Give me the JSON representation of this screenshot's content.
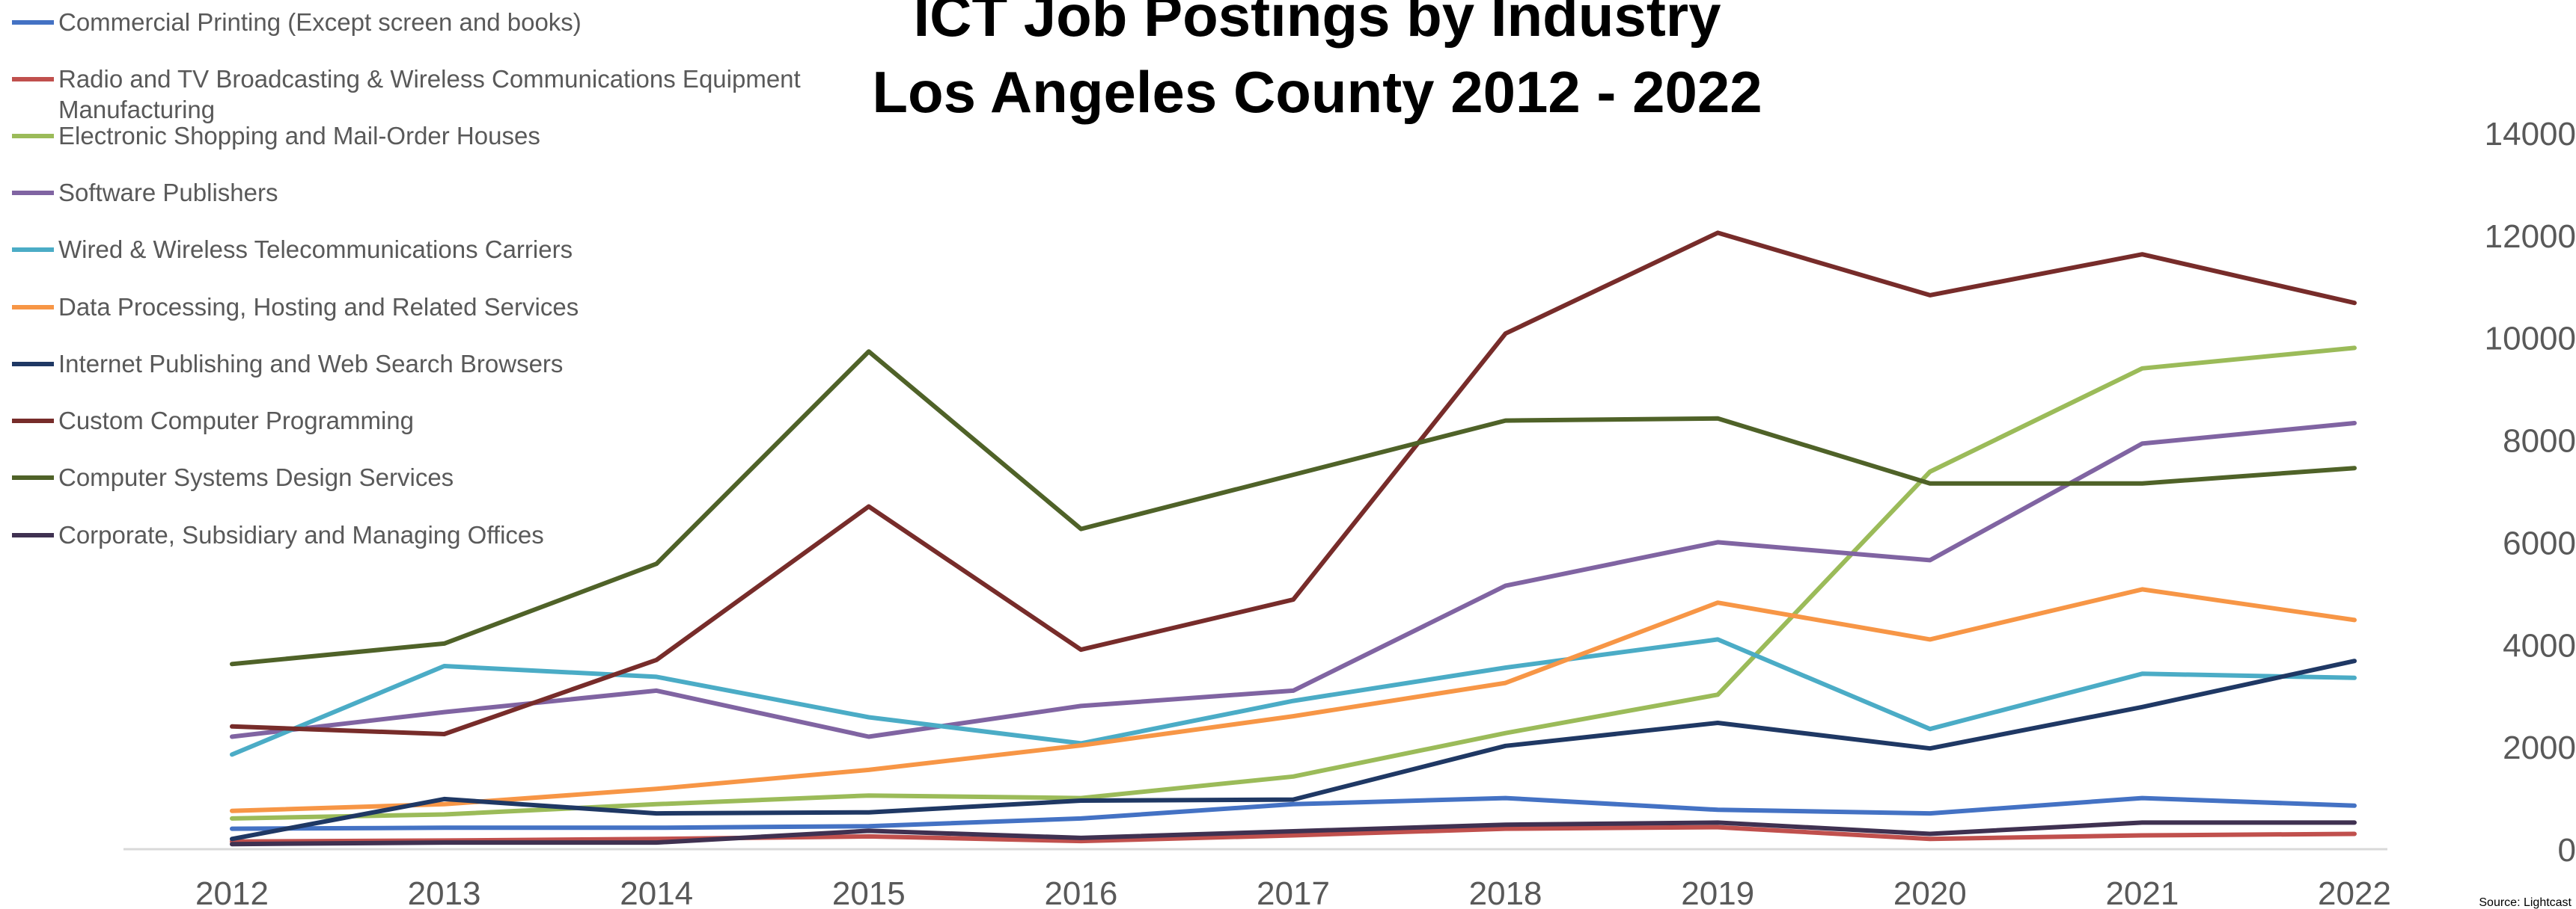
{
  "chart_data": {
    "type": "line",
    "title": [
      "ICT Job Postings by Industry",
      "Los Angeles County 2012 - 2022"
    ],
    "categories": [
      "2012",
      "2013",
      "2014",
      "2015",
      "2016",
      "2017",
      "2018",
      "2019",
      "2020",
      "2021",
      "2022"
    ],
    "ylim": [
      0,
      14000
    ],
    "yticks": [
      "0",
      "2000",
      "4000",
      "6000",
      "8000",
      "10000",
      "12000",
      "14000"
    ],
    "ytick_values": [
      0,
      2000,
      4000,
      6000,
      8000,
      10000,
      12000,
      14000
    ],
    "y_axis_side": "right",
    "grid": false,
    "legend_position": "top-left",
    "source": "Source: Lightcast",
    "series": [
      {
        "name": "Commercial Printing (Except screen and books)",
        "color": "#4472C4",
        "values": [
          400,
          420,
          420,
          450,
          600,
          880,
          1000,
          770,
          700,
          1000,
          850
        ]
      },
      {
        "name": "Radio and TV Broadcasting & Wireless Communications Equipment Manufacturing",
        "color": "#C0504D",
        "values": [
          150,
          170,
          200,
          250,
          160,
          270,
          400,
          430,
          200,
          270,
          300
        ]
      },
      {
        "name": "Electronic Shopping and Mail-Order Houses",
        "color": "#9BBB59",
        "values": [
          600,
          680,
          880,
          1050,
          1000,
          1420,
          2270,
          3020,
          7380,
          9400,
          9800
        ]
      },
      {
        "name": "Software Publishers",
        "color": "#8064A2",
        "values": [
          2200,
          2680,
          3100,
          2200,
          2800,
          3100,
          5150,
          6000,
          5650,
          7930,
          8330
        ]
      },
      {
        "name": "Wired & Wireless Telecommunications Carriers",
        "color": "#4BACC6",
        "values": [
          1850,
          3580,
          3370,
          2580,
          2070,
          2900,
          3550,
          4100,
          2350,
          3430,
          3350
        ]
      },
      {
        "name": "Data Processing, Hosting and Related Services",
        "color": "#F79646",
        "values": [
          750,
          880,
          1180,
          1550,
          2030,
          2600,
          3250,
          4820,
          4100,
          5080,
          4480
        ]
      },
      {
        "name": "Internet Publishing and Web Search Browsers",
        "color": "#1F3864",
        "values": [
          200,
          980,
          700,
          720,
          950,
          970,
          2020,
          2470,
          1970,
          2780,
          3680
        ]
      },
      {
        "name": "Custom Computer Programming",
        "color": "#772C2A",
        "values": [
          2400,
          2250,
          3700,
          6700,
          3900,
          4880,
          10080,
          12050,
          10830,
          11630,
          10680
        ]
      },
      {
        "name": "Computer Systems Design Services",
        "color": "#4F6228",
        "values": [
          3620,
          4020,
          5580,
          9730,
          6260,
          7320,
          8380,
          8420,
          7150,
          7150,
          7450
        ]
      },
      {
        "name": "Corporate, Subsidiary and Managing Offices",
        "color": "#3F3151",
        "values": [
          100,
          130,
          130,
          360,
          220,
          350,
          480,
          520,
          300,
          520,
          520
        ]
      }
    ]
  }
}
